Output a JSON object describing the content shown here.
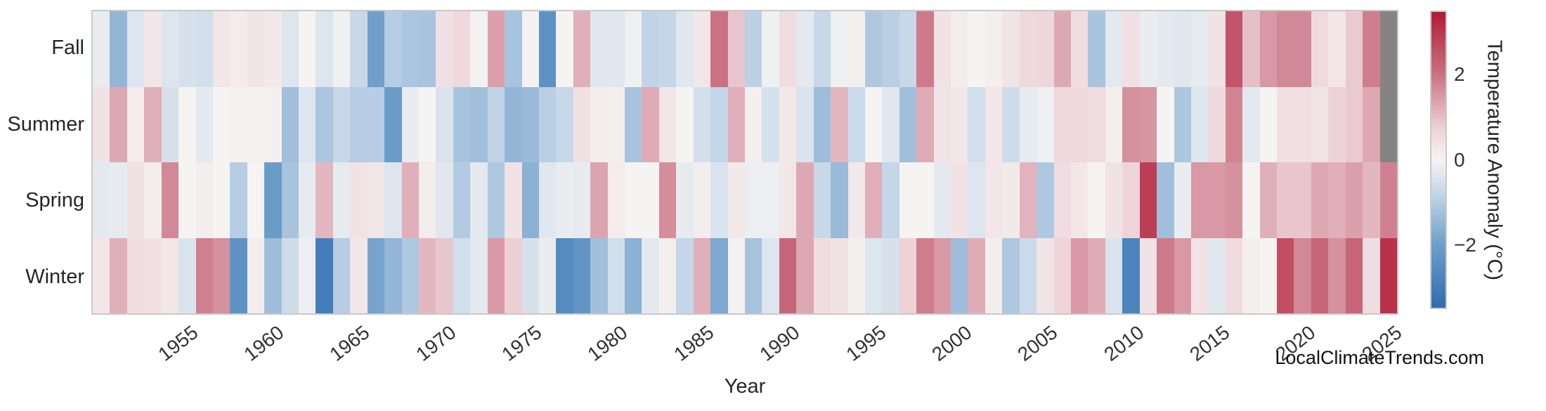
{
  "watermark": "LocalClimateTrends.com",
  "chart_data": {
    "type": "heatmap",
    "xlabel": "Year",
    "rows": [
      "Fall",
      "Summer",
      "Spring",
      "Winter"
    ],
    "year_start": 1950,
    "year_end": 2025,
    "x_ticks": [
      1955,
      1960,
      1965,
      1970,
      1975,
      1980,
      1985,
      1990,
      1995,
      2000,
      2005,
      2010,
      2015,
      2020,
      2025
    ],
    "grid": false,
    "colorbar": {
      "label": "Temperature Anomaly (°C)",
      "ticks": [
        2,
        0,
        -2
      ],
      "vmin": -3.5,
      "vmax": 3.5,
      "missing_color": "#848484",
      "gradient_stops": [
        {
          "value": -3.5,
          "color": "#2e6db2"
        },
        {
          "value": -2.0,
          "color": "#6f9fca"
        },
        {
          "value": -0.75,
          "color": "#c8d8e9"
        },
        {
          "value": 0.0,
          "color": "#f5f4f3"
        },
        {
          "value": 0.75,
          "color": "#edd2d8"
        },
        {
          "value": 2.0,
          "color": "#ca7283"
        },
        {
          "value": 3.5,
          "color": "#b31b34"
        }
      ]
    },
    "series": [
      {
        "name": "Fall",
        "values": [
          -0.2,
          -1.5,
          -0.4,
          0.3,
          -0.4,
          -0.5,
          -0.6,
          0.3,
          0.2,
          0.35,
          0.25,
          -0.4,
          0,
          -0.4,
          -0.1,
          -0.75,
          -2,
          -1,
          -1.15,
          -1.2,
          0.45,
          0.6,
          -0.05,
          1.4,
          -1.2,
          0.05,
          -2.4,
          0,
          1.2,
          -0.35,
          -0.35,
          -0.1,
          -0.85,
          -0.8,
          -0.35,
          0.3,
          2,
          0.9,
          -0.9,
          -0.1,
          0.5,
          -0.3,
          -0.75,
          -0.1,
          0.1,
          -1.1,
          -0.95,
          -0.75,
          1.9,
          0.4,
          0.15,
          0,
          0.1,
          0.35,
          0.6,
          0.65,
          1.3,
          0.5,
          -1.2,
          -0.3,
          0.45,
          -0.2,
          -0.3,
          -0.35,
          -0.25,
          0.4,
          2.5,
          1,
          1.5,
          1.7,
          1.7,
          0.55,
          0.3,
          0.85,
          1.85,
          null
        ]
      },
      {
        "name": "Summer",
        "values": [
          0.4,
          1.3,
          0.2,
          1.2,
          -0.5,
          0,
          -0.3,
          0,
          0.05,
          0.05,
          0.1,
          -1.3,
          -0.4,
          -1.15,
          -0.75,
          -1,
          -1,
          -2.1,
          -0.2,
          0,
          -0.45,
          -1.2,
          -1.3,
          -0.85,
          -1.5,
          -1.4,
          -0.95,
          -0.75,
          0.45,
          0.15,
          0.1,
          -1.2,
          1.25,
          0.3,
          0,
          -0.55,
          -0.8,
          1.2,
          0.1,
          -0.5,
          0.25,
          -0.45,
          -1.35,
          1.1,
          -0.7,
          0,
          -0.35,
          -1.3,
          1.25,
          0.35,
          0.3,
          -0.6,
          0.3,
          -0.65,
          -0.25,
          -0.1,
          0.6,
          0.6,
          0.5,
          0.1,
          1.6,
          1.55,
          0,
          -1.15,
          -0.4,
          0.6,
          1.75,
          -0.3,
          0,
          0.45,
          0.45,
          0.35,
          0.75,
          0.85,
          1.3,
          null
        ]
      },
      {
        "name": "Spring",
        "values": [
          -0.3,
          -0.25,
          0.45,
          0.2,
          1.7,
          0,
          0.15,
          0,
          -1,
          0,
          -2.1,
          -1.2,
          -0.25,
          1.1,
          -0.25,
          0.4,
          0.3,
          -0.4,
          1.2,
          0.15,
          -0.35,
          -1.05,
          -0.3,
          -1.1,
          0.4,
          -1.6,
          -0.35,
          -0.2,
          -0.25,
          1.35,
          0.2,
          0,
          0,
          1.65,
          -0.25,
          0.15,
          -0.45,
          0.25,
          -0.15,
          -0.15,
          0.3,
          1.3,
          -0.75,
          -1.4,
          0.25,
          1.2,
          -0.8,
          0,
          0,
          -0.3,
          0.4,
          -0.4,
          0.3,
          0.25,
          1.15,
          -1.1,
          0.5,
          0.3,
          0,
          0.4,
          0.7,
          2.9,
          -1.3,
          -0.2,
          1.5,
          1.5,
          1.6,
          0,
          1.2,
          0.9,
          0.9,
          1.3,
          1.2,
          1.4,
          1.1,
          1.8
        ]
      },
      {
        "name": "Winter",
        "values": [
          0.3,
          1.2,
          0.5,
          0.45,
          0.3,
          -0.45,
          1.8,
          1.6,
          -2.4,
          0.15,
          -1.35,
          -0.65,
          -0.15,
          -3,
          -1,
          0.3,
          -1.9,
          -1.5,
          -1.1,
          1.1,
          0.9,
          -0.6,
          -0.3,
          1.5,
          0.8,
          -0.5,
          -0.2,
          -2.6,
          -2.3,
          -1.3,
          -0.6,
          -1.6,
          -0.3,
          0.1,
          -0.8,
          1.2,
          -1.8,
          0.05,
          -1.2,
          -0.4,
          2.2,
          1.3,
          0.5,
          0.4,
          0.1,
          -0.4,
          -0.5,
          0.75,
          1.85,
          1.5,
          -1.35,
          1.25,
          0.15,
          -1.1,
          -0.7,
          0.35,
          0.7,
          1.5,
          1.25,
          -0.45,
          -2.8,
          0.4,
          1.9,
          1.5,
          0.4,
          -0.35,
          0.55,
          0.1,
          0,
          2.6,
          1.7,
          2.2,
          1.6,
          2.2,
          0.5,
          3.1
        ]
      }
    ]
  }
}
